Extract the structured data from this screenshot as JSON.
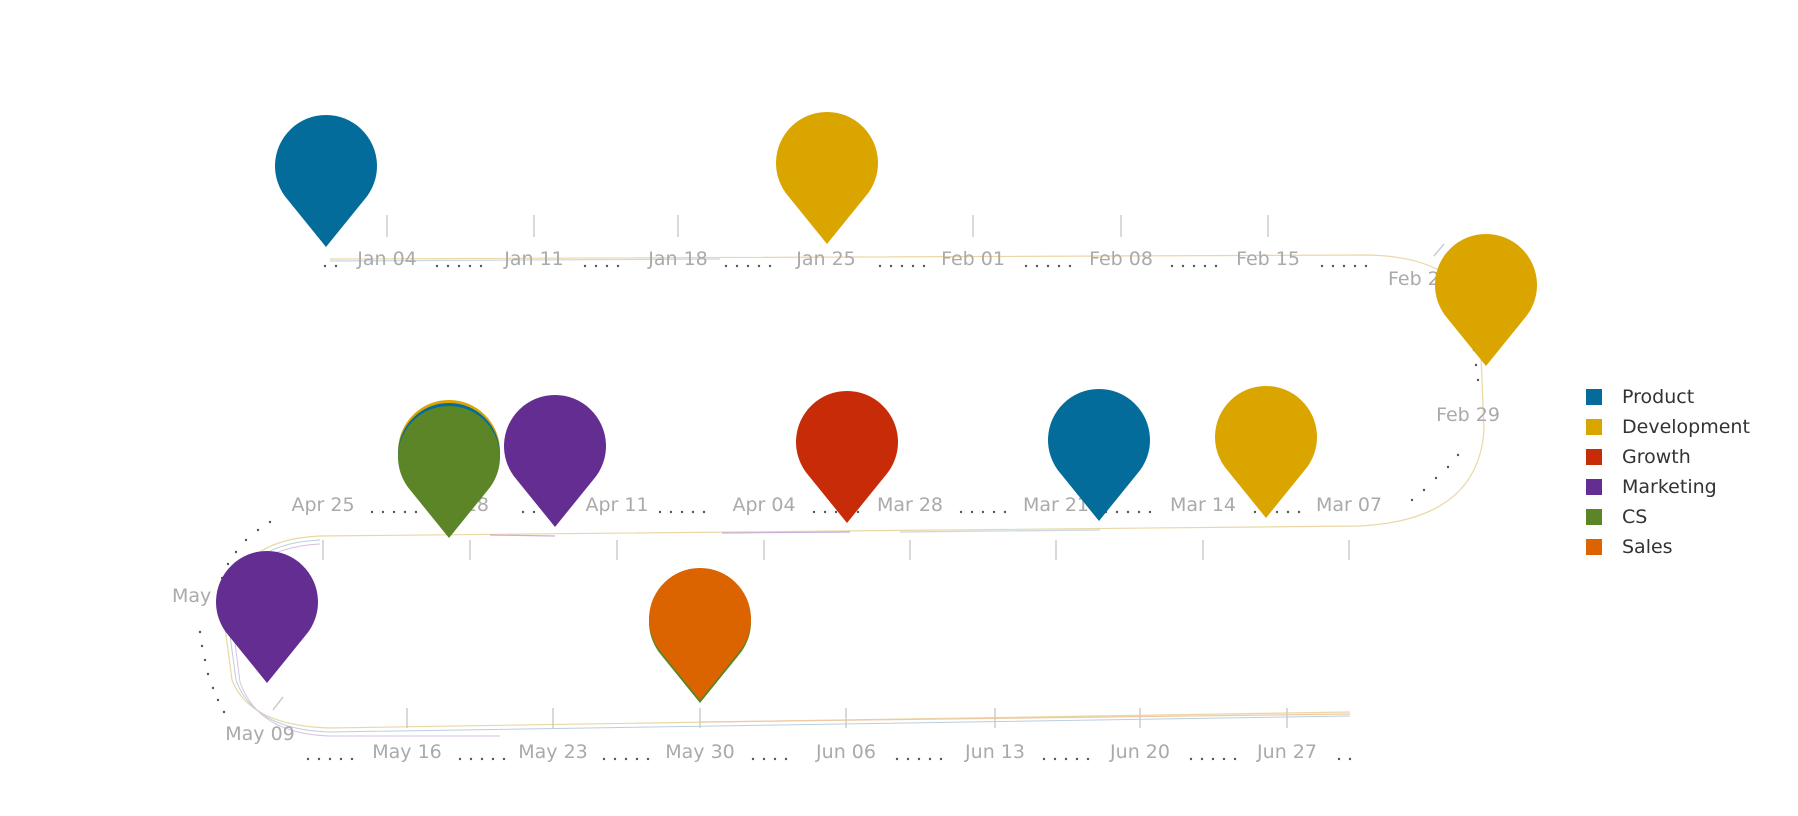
{
  "chart_data": {
    "type": "timeline",
    "title": "",
    "ticks": [
      "Jan 04",
      "Jan 11",
      "Jan 18",
      "Jan 25",
      "Feb 01",
      "Feb 08",
      "Feb 15",
      "Feb 22",
      "Feb 29",
      "Mar 07",
      "Mar 14",
      "Mar 21",
      "Mar 28",
      "Apr 04",
      "Apr 11",
      "Apr 18",
      "Apr 25",
      "May 02",
      "May 09",
      "May 16",
      "May 23",
      "May 30",
      "Jun 06",
      "Jun 13",
      "Jun 20",
      "Jun 27"
    ],
    "categories": [
      {
        "name": "Product",
        "color": "#036c9b"
      },
      {
        "name": "Development",
        "color": "#dba500"
      },
      {
        "name": "Growth",
        "color": "#c82b07"
      },
      {
        "name": "Marketing",
        "color": "#642d91"
      },
      {
        "name": "CS",
        "color": "#5b8526"
      },
      {
        "name": "Sales",
        "color": "#db6400"
      }
    ],
    "milestones": [
      {
        "date": "Jan 01",
        "category": "Product"
      },
      {
        "date": "Jan 25",
        "category": "Development"
      },
      {
        "date": "Feb 25",
        "category": "Development"
      },
      {
        "date": "Mar 11",
        "category": "Development"
      },
      {
        "date": "Mar 20",
        "category": "Product"
      },
      {
        "date": "Apr 01",
        "category": "Growth"
      },
      {
        "date": "Apr 15",
        "category": "Marketing"
      },
      {
        "date": "Apr 20",
        "category": "Development"
      },
      {
        "date": "Apr 20",
        "category": "Product"
      },
      {
        "date": "Apr 20",
        "category": "CS"
      },
      {
        "date": "May 04",
        "category": "Marketing"
      },
      {
        "date": "May 30",
        "category": "CS"
      },
      {
        "date": "May 30",
        "category": "Sales"
      }
    ],
    "legend": "right"
  }
}
